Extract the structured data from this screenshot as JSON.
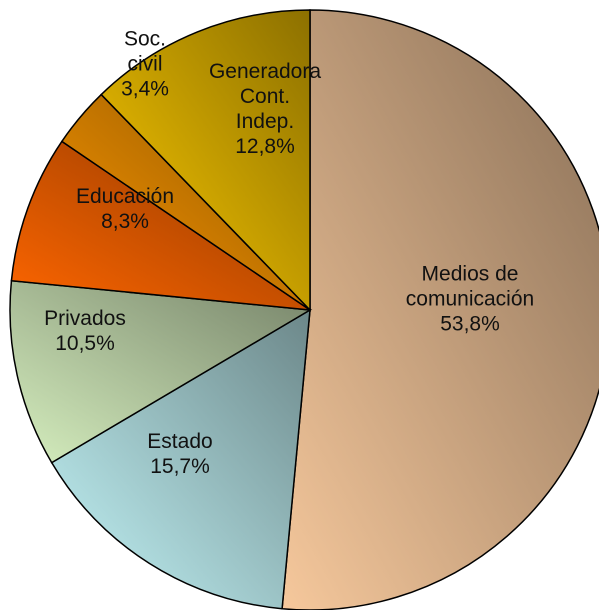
{
  "chart_data": {
    "type": "pie",
    "categories": [
      [
        "Medios de",
        "comunicación"
      ],
      [
        "Estado"
      ],
      [
        "Privados"
      ],
      [
        "Educación"
      ],
      [
        "Soc.",
        "civil"
      ],
      [
        "Generadora",
        "Cont.",
        "Indep."
      ]
    ],
    "values": [
      53.8,
      15.7,
      10.5,
      8.3,
      3.4,
      12.8
    ],
    "value_labels": [
      "53,8%",
      "15,7%",
      "10,5%",
      "8,3%",
      "3,4%",
      "12,8%"
    ],
    "colors": [
      "#f6c89c",
      "#c4f6f9",
      "#d6efbf",
      "#ff6600",
      "#ff9900",
      "#ffcc00"
    ]
  }
}
